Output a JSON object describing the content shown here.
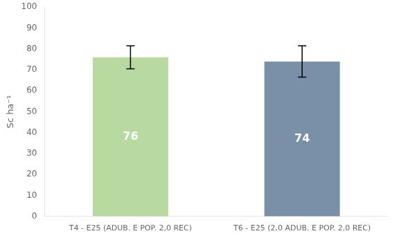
{
  "chart_data": {
    "type": "bar",
    "categories": [
      "T4 - E25 (ADUB. E POP. 2,0 REC)",
      "T6 - E25 (2,0 ADUB. E POP. 2,0 REC)"
    ],
    "values": [
      76,
      74
    ],
    "errors": [
      5.5,
      7.5
    ],
    "colors": [
      "#b8d9a0",
      "#7a90a8"
    ],
    "ylabel": "Sc ha⁻¹",
    "ylim": [
      0,
      100
    ],
    "yticks": [
      0,
      10,
      20,
      30,
      40,
      50,
      60,
      70,
      80,
      90,
      100
    ],
    "grid": false,
    "data_labels": true
  }
}
